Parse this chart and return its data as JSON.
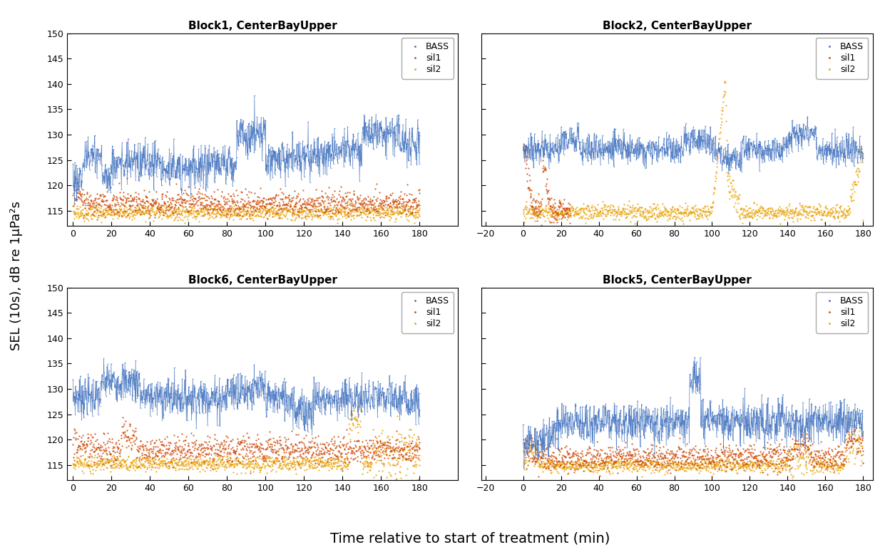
{
  "titles": [
    "Block1, CenterBayUpper",
    "Block2, CenterBayUpper",
    "Block6, CenterBayUpper",
    "Block5, CenterBayUpper"
  ],
  "xlabel": "Time relative to start of treatment (min)",
  "ylabel": "SEL (10s), dB re 1μPa²s",
  "legend_labels": [
    "BASS",
    "sil1",
    "sil2"
  ],
  "colors": {
    "BASS": "#3C6EBE",
    "sil1": "#CC4400",
    "sil2": "#E8A000"
  },
  "ylim": [
    112,
    150
  ],
  "yticks": [
    115,
    120,
    125,
    130,
    135,
    140,
    145,
    150
  ],
  "block1": {
    "xlim": [
      -3,
      200
    ],
    "xticks": [
      0,
      20,
      40,
      60,
      80,
      100,
      120,
      140,
      160,
      180
    ]
  },
  "block2": {
    "xlim": [
      -22,
      185
    ],
    "xticks": [
      -20,
      0,
      20,
      40,
      60,
      80,
      100,
      120,
      140,
      160,
      180
    ]
  },
  "block6": {
    "xlim": [
      -3,
      200
    ],
    "xticks": [
      0,
      20,
      40,
      60,
      80,
      100,
      120,
      140,
      160,
      180
    ]
  },
  "block5": {
    "xlim": [
      -22,
      185
    ],
    "xticks": [
      -20,
      0,
      20,
      40,
      60,
      80,
      100,
      120,
      140,
      160,
      180
    ]
  },
  "background_color": "#FFFFFF",
  "title_fontsize": 11,
  "label_fontsize": 13,
  "tick_fontsize": 9,
  "legend_fontsize": 9
}
